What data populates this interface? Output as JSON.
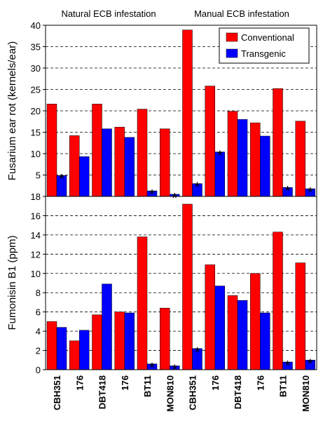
{
  "chart_data": [
    {
      "type": "bar",
      "group_titles": [
        "Natural ECB infestation",
        "Manual ECB infestation"
      ],
      "ylabel": "Fusarium ear rot (kernels/ear)",
      "ylim": [
        0,
        40
      ],
      "yticks": [
        0,
        5,
        10,
        15,
        20,
        25,
        30,
        35,
        40
      ],
      "grid": "horizontal dashed",
      "legend": {
        "placement": "top-right",
        "entries": [
          "Conventional",
          "Transgenic"
        ]
      },
      "categories": [
        "CBH351",
        "176",
        "DBT418",
        "176",
        "BT11",
        "MON810",
        "CBH351",
        "176",
        "DBT418",
        "176",
        "BT11",
        "MON810"
      ],
      "series": [
        {
          "name": "Conventional",
          "color": "#ff0000",
          "values": [
            21.6,
            14.2,
            21.6,
            16.2,
            20.4,
            15.8,
            38.9,
            25.8,
            19.9,
            17.2,
            25.2,
            17.6
          ]
        },
        {
          "name": "Transgenic",
          "color": "#0000ff",
          "values": [
            4.9,
            9.3,
            15.8,
            13.8,
            1.3,
            0.5,
            3.0,
            10.4,
            18.0,
            14.1,
            2.1,
            1.8
          ]
        }
      ],
      "significance_marker": "*",
      "significant_transgenic_index": [
        0,
        4,
        5,
        6,
        7,
        10,
        11
      ]
    },
    {
      "type": "bar",
      "ylabel": "Fumonisin B1 (ppm)",
      "ylim": [
        0,
        18
      ],
      "yticks": [
        0,
        2,
        4,
        6,
        8,
        10,
        12,
        14,
        16,
        18
      ],
      "grid": "horizontal dashed",
      "categories": [
        "CBH351",
        "176",
        "DBT418",
        "176",
        "BT11",
        "MON810",
        "CBH351",
        "176",
        "DBT418",
        "176",
        "BT11",
        "MON810"
      ],
      "series": [
        {
          "name": "Conventional",
          "color": "#ff0000",
          "values": [
            5.0,
            3.0,
            5.7,
            6.0,
            13.8,
            6.4,
            17.2,
            10.9,
            7.7,
            10.0,
            14.3,
            11.1
          ]
        },
        {
          "name": "Transgenic",
          "color": "#0000ff",
          "values": [
            4.4,
            4.1,
            8.9,
            5.9,
            0.6,
            0.4,
            2.2,
            8.7,
            7.2,
            5.9,
            0.8,
            1.0
          ]
        }
      ],
      "significance_marker": "*",
      "significant_transgenic_index": [
        4,
        5,
        6,
        10,
        11
      ]
    }
  ]
}
